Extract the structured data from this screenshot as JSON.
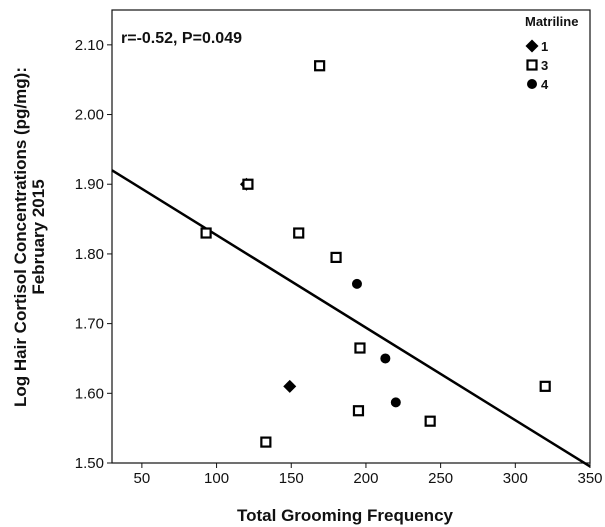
{
  "chart_data": {
    "type": "scatter",
    "title": "",
    "xlabel": "Total Grooming Frequency",
    "ylabel_lines": [
      "Log Hair Cortisol Concentrations (pg/mg):",
      "February 2015"
    ],
    "annotation": "r=-0.52, P=0.049",
    "xlim": [
      30,
      350
    ],
    "ylim": [
      1.5,
      2.15
    ],
    "x_ticks": [
      50,
      100,
      150,
      200,
      250,
      300,
      350
    ],
    "x_tick_labels": [
      "50",
      "100",
      "150",
      "200",
      "250",
      "300",
      "350"
    ],
    "y_ticks": [
      1.5,
      1.6,
      1.7,
      1.8,
      1.9,
      2.0,
      2.1
    ],
    "y_tick_labels": [
      "1.50",
      "1.60",
      "1.70",
      "1.80",
      "1.90",
      "2.00",
      "2.10"
    ],
    "grid": false,
    "legend": {
      "title": "Matriline",
      "placement": "top-right"
    },
    "fit_line": {
      "x": [
        30,
        350
      ],
      "y": [
        1.92,
        1.495
      ]
    },
    "series": [
      {
        "name": "1",
        "marker": "diamond",
        "points": [
          [
            120,
            1.9
          ],
          [
            149,
            1.61
          ]
        ]
      },
      {
        "name": "3",
        "marker": "open-square",
        "points": [
          [
            169,
            2.07
          ],
          [
            121,
            1.9
          ],
          [
            93,
            1.83
          ],
          [
            155,
            1.83
          ],
          [
            180,
            1.795
          ],
          [
            196,
            1.665
          ],
          [
            195,
            1.575
          ],
          [
            133,
            1.53
          ],
          [
            243,
            1.56
          ],
          [
            320,
            1.61
          ]
        ]
      },
      {
        "name": "4",
        "marker": "circle",
        "points": [
          [
            194,
            1.757
          ],
          [
            213,
            1.65
          ],
          [
            220,
            1.587
          ]
        ]
      }
    ]
  }
}
